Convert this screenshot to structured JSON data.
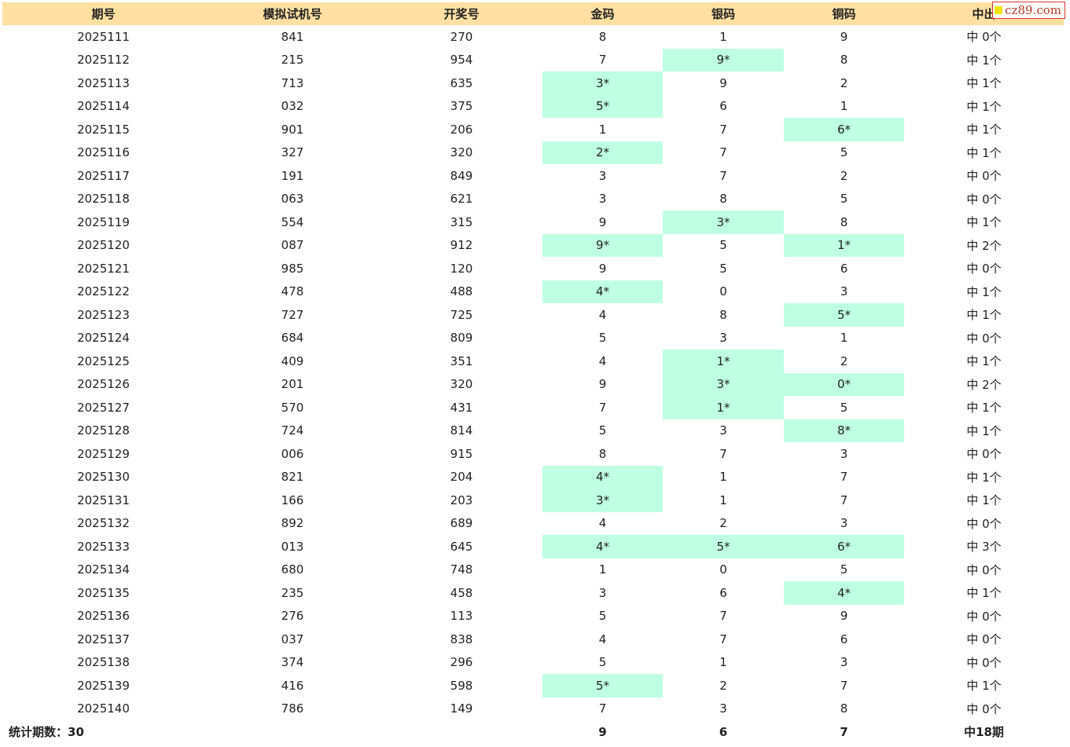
{
  "watermark": {
    "text": "cz89.com"
  },
  "colors": {
    "header_bg": "#ffe0a2",
    "hit_bg": "#bfffe3",
    "watermark_red": "#c0392b"
  },
  "table": {
    "headers": [
      "期号",
      "模拟试机号",
      "开奖号",
      "金码",
      "银码",
      "铜码",
      "中出"
    ],
    "rows": [
      [
        "2025111",
        "841",
        "270",
        "8",
        "1",
        "9",
        "中 0个"
      ],
      [
        "2025112",
        "215",
        "954",
        "7",
        "9*",
        "8",
        "中 1个"
      ],
      [
        "2025113",
        "713",
        "635",
        "3*",
        "9",
        "2",
        "中 1个"
      ],
      [
        "2025114",
        "032",
        "375",
        "5*",
        "6",
        "1",
        "中 1个"
      ],
      [
        "2025115",
        "901",
        "206",
        "1",
        "7",
        "6*",
        "中 1个"
      ],
      [
        "2025116",
        "327",
        "320",
        "2*",
        "7",
        "5",
        "中 1个"
      ],
      [
        "2025117",
        "191",
        "849",
        "3",
        "7",
        "2",
        "中 0个"
      ],
      [
        "2025118",
        "063",
        "621",
        "3",
        "8",
        "5",
        "中 0个"
      ],
      [
        "2025119",
        "554",
        "315",
        "9",
        "3*",
        "8",
        "中 1个"
      ],
      [
        "2025120",
        "087",
        "912",
        "9*",
        "5",
        "1*",
        "中 2个"
      ],
      [
        "2025121",
        "985",
        "120",
        "9",
        "5",
        "6",
        "中 0个"
      ],
      [
        "2025122",
        "478",
        "488",
        "4*",
        "0",
        "3",
        "中 1个"
      ],
      [
        "2025123",
        "727",
        "725",
        "4",
        "8",
        "5*",
        "中 1个"
      ],
      [
        "2025124",
        "684",
        "809",
        "5",
        "3",
        "1",
        "中 0个"
      ],
      [
        "2025125",
        "409",
        "351",
        "4",
        "1*",
        "2",
        "中 1个"
      ],
      [
        "2025126",
        "201",
        "320",
        "9",
        "3*",
        "0*",
        "中 2个"
      ],
      [
        "2025127",
        "570",
        "431",
        "7",
        "1*",
        "5",
        "中 1个"
      ],
      [
        "2025128",
        "724",
        "814",
        "5",
        "3",
        "8*",
        "中 1个"
      ],
      [
        "2025129",
        "006",
        "915",
        "8",
        "7",
        "3",
        "中 0个"
      ],
      [
        "2025130",
        "821",
        "204",
        "4*",
        "1",
        "7",
        "中 1个"
      ],
      [
        "2025131",
        "166",
        "203",
        "3*",
        "1",
        "7",
        "中 1个"
      ],
      [
        "2025132",
        "892",
        "689",
        "4",
        "2",
        "3",
        "中 0个"
      ],
      [
        "2025133",
        "013",
        "645",
        "4*",
        "5*",
        "6*",
        "中 3个"
      ],
      [
        "2025134",
        "680",
        "748",
        "1",
        "0",
        "5",
        "中 0个"
      ],
      [
        "2025135",
        "235",
        "458",
        "3",
        "6",
        "4*",
        "中 1个"
      ],
      [
        "2025136",
        "276",
        "113",
        "5",
        "7",
        "9",
        "中 0个"
      ],
      [
        "2025137",
        "037",
        "838",
        "4",
        "7",
        "6",
        "中 0个"
      ],
      [
        "2025138",
        "374",
        "296",
        "5",
        "1",
        "3",
        "中 0个"
      ],
      [
        "2025139",
        "416",
        "598",
        "5*",
        "2",
        "7",
        "中 1个"
      ],
      [
        "2025140",
        "786",
        "149",
        "7",
        "3",
        "8",
        "中 0个"
      ]
    ],
    "footer": {
      "label": "统计期数：30",
      "gold_total": "9",
      "silver_total": "6",
      "copper_total": "7",
      "hits_total": "中18期"
    }
  }
}
